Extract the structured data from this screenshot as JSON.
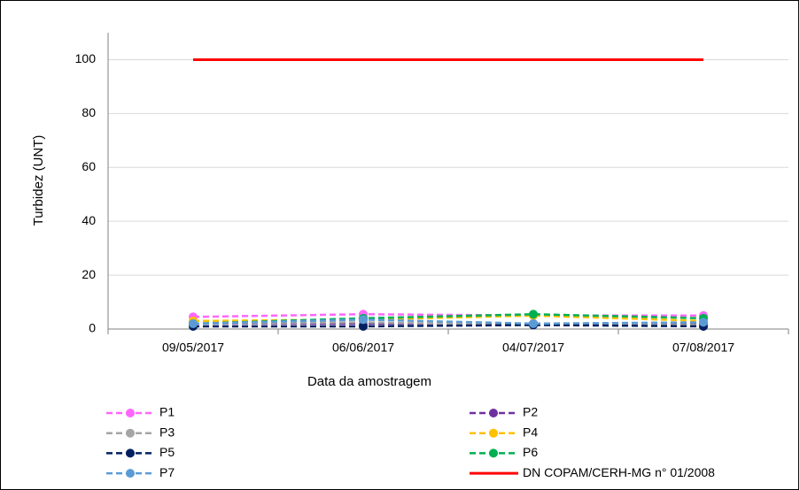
{
  "chart_data": {
    "type": "line",
    "x_label": "Data da amostragem",
    "y_label": "Turbidez (UNT)",
    "categories": [
      "09/05/2017",
      "06/06/2017",
      "04/07/2017",
      "07/08/2017"
    ],
    "ylim": [
      0,
      110
    ],
    "yticks": [
      0,
      20,
      40,
      60,
      80,
      100
    ],
    "grid": true,
    "series": [
      {
        "name": "P1",
        "color": "#ff66ff",
        "dashed": true,
        "marker": true,
        "values": [
          4.5,
          5.5,
          5,
          5
        ]
      },
      {
        "name": "P2",
        "color": "#7030a0",
        "dashed": true,
        "marker": true,
        "values": [
          2,
          2,
          2,
          2
        ]
      },
      {
        "name": "P3",
        "color": "#a5a5a5",
        "dashed": true,
        "marker": true,
        "values": [
          2,
          2.5,
          1.5,
          1.5
        ]
      },
      {
        "name": "P4",
        "color": "#ffc000",
        "dashed": true,
        "marker": true,
        "values": [
          3,
          3.5,
          5,
          3
        ]
      },
      {
        "name": "P5",
        "color": "#002060",
        "dashed": true,
        "marker": true,
        "values": [
          1,
          1,
          1.5,
          1
        ]
      },
      {
        "name": "P6",
        "color": "#00b050",
        "dashed": true,
        "marker": true,
        "values": [
          2,
          4,
          5.5,
          4
        ]
      },
      {
        "name": "P7",
        "color": "#5b9bd5",
        "dashed": true,
        "marker": true,
        "values": [
          2,
          3.5,
          2,
          2.5
        ]
      },
      {
        "name": "DN COPAM/CERH-MG n° 01/2008",
        "color": "#ff0000",
        "dashed": false,
        "marker": false,
        "values": [
          100,
          100,
          100,
          100
        ]
      }
    ]
  }
}
